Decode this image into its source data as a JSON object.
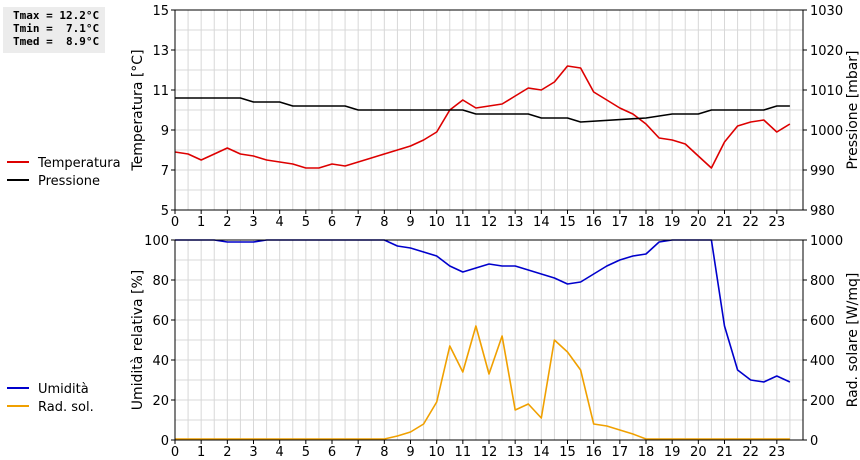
{
  "stats": {
    "tmax": "Tmax = 12.2°C",
    "tmin": "Tmin =  7.1°C",
    "tmed": "Tmed =  8.9°C"
  },
  "chart_data": [
    {
      "type": "line",
      "xlim": [
        0,
        24
      ],
      "xticks": [
        "0",
        "1",
        "2",
        "3",
        "4",
        "5",
        "6",
        "7",
        "8",
        "9",
        "10",
        "11",
        "12",
        "13",
        "14",
        "15",
        "16",
        "17",
        "18",
        "19",
        "20",
        "21",
        "22",
        "23"
      ],
      "ylabel": "Temperatura [°C]",
      "ylim": [
        5,
        15
      ],
      "yticks": [
        5,
        7,
        9,
        11,
        13,
        15
      ],
      "y2label": "Pressione [mbar]",
      "y2lim": [
        980,
        1030
      ],
      "y2ticks": [
        980,
        990,
        1000,
        1010,
        1020,
        1030
      ],
      "grid": true,
      "legend": [
        {
          "name": "Temperatura",
          "color": "#dd0000"
        },
        {
          "name": "Pressione",
          "color": "#000000"
        }
      ],
      "series": [
        {
          "name": "Temperatura",
          "axis": "left",
          "color": "#dd0000",
          "x": [
            0,
            0.5,
            1,
            1.5,
            2,
            2.5,
            3,
            3.5,
            4,
            4.5,
            5,
            5.5,
            6,
            6.5,
            7,
            7.5,
            8,
            8.5,
            9,
            9.5,
            10,
            10.5,
            11,
            11.5,
            12,
            12.5,
            13,
            13.5,
            14,
            14.5,
            15,
            15.5,
            16,
            16.5,
            17,
            17.5,
            18,
            18.5,
            19,
            19.5,
            20,
            20.5,
            21,
            21.5,
            22,
            22.5,
            23,
            23.5
          ],
          "y": [
            7.9,
            7.8,
            7.5,
            7.8,
            8.1,
            7.8,
            7.7,
            7.5,
            7.4,
            7.3,
            7.1,
            7.1,
            7.3,
            7.2,
            7.4,
            7.6,
            7.8,
            8.0,
            8.2,
            8.5,
            8.9,
            10.0,
            10.5,
            10.1,
            10.2,
            10.3,
            10.7,
            11.1,
            11.0,
            11.4,
            12.2,
            12.1,
            10.9,
            10.5,
            10.1,
            9.8,
            9.3,
            8.6,
            8.5,
            8.3,
            7.7,
            7.1,
            8.4,
            9.2,
            9.4,
            9.5,
            8.9,
            9.3
          ]
        },
        {
          "name": "Pressione",
          "axis": "right",
          "color": "#000000",
          "x": [
            0,
            2.5,
            3,
            4,
            4.5,
            6.5,
            7,
            10.5,
            11,
            11.5,
            12,
            13.5,
            14,
            15,
            15.5,
            18,
            19,
            20,
            20.5,
            22.5,
            23,
            23.5
          ],
          "y": [
            1008,
            1008,
            1007,
            1007,
            1006,
            1006,
            1005,
            1005,
            1005,
            1004,
            1004,
            1004,
            1003,
            1003,
            1002,
            1003,
            1004,
            1004,
            1005,
            1005,
            1006,
            1006
          ]
        }
      ]
    },
    {
      "type": "line",
      "xlim": [
        0,
        24
      ],
      "xticks": [
        "0",
        "1",
        "2",
        "3",
        "4",
        "5",
        "6",
        "7",
        "8",
        "9",
        "10",
        "11",
        "12",
        "13",
        "14",
        "15",
        "16",
        "17",
        "18",
        "19",
        "20",
        "21",
        "22",
        "23"
      ],
      "ylabel": "Umidità relativa [%]",
      "ylim": [
        0,
        100
      ],
      "yticks": [
        0,
        20,
        40,
        60,
        80,
        100
      ],
      "y2label": "Rad. solare [W/mq]",
      "y2lim": [
        0,
        1000
      ],
      "y2ticks": [
        0,
        200,
        400,
        600,
        800,
        1000
      ],
      "grid": true,
      "legend": [
        {
          "name": "Umidità",
          "color": "#0000cc"
        },
        {
          "name": "Rad. sol.",
          "color": "#f0a000"
        }
      ],
      "series": [
        {
          "name": "Umidità",
          "axis": "left",
          "color": "#0000cc",
          "x": [
            0,
            1.5,
            2,
            3,
            3.5,
            8,
            8.5,
            9,
            9.5,
            10,
            10.5,
            11,
            11.5,
            12,
            12.5,
            13,
            13.5,
            14,
            14.5,
            15,
            15.5,
            16,
            16.5,
            17,
            17.5,
            18,
            18.5,
            19,
            19.5,
            20,
            20.5,
            21,
            21.5,
            22,
            22.5,
            23,
            23.5
          ],
          "y": [
            100,
            100,
            99,
            99,
            100,
            100,
            97,
            96,
            94,
            92,
            87,
            84,
            86,
            88,
            87,
            87,
            85,
            83,
            81,
            78,
            79,
            83,
            87,
            90,
            92,
            93,
            99,
            100,
            100,
            100,
            100,
            57,
            35,
            30,
            29,
            32,
            29
          ]
        },
        {
          "name": "Rad. sol.",
          "axis": "right",
          "color": "#f0a000",
          "x": [
            0,
            1,
            2,
            3,
            4,
            5,
            6,
            7,
            8,
            8.5,
            9,
            9.5,
            10,
            10.5,
            11,
            11.5,
            12,
            12.5,
            13,
            13.5,
            14,
            14.5,
            15,
            15.5,
            16,
            16.5,
            17,
            17.5,
            18,
            19,
            20,
            21,
            22,
            23,
            23.5
          ],
          "y": [
            5,
            5,
            5,
            5,
            5,
            5,
            5,
            5,
            5,
            20,
            40,
            80,
            190,
            470,
            340,
            570,
            330,
            520,
            150,
            180,
            110,
            500,
            440,
            350,
            80,
            70,
            50,
            30,
            5,
            5,
            5,
            5,
            5,
            5,
            5
          ]
        }
      ]
    }
  ]
}
